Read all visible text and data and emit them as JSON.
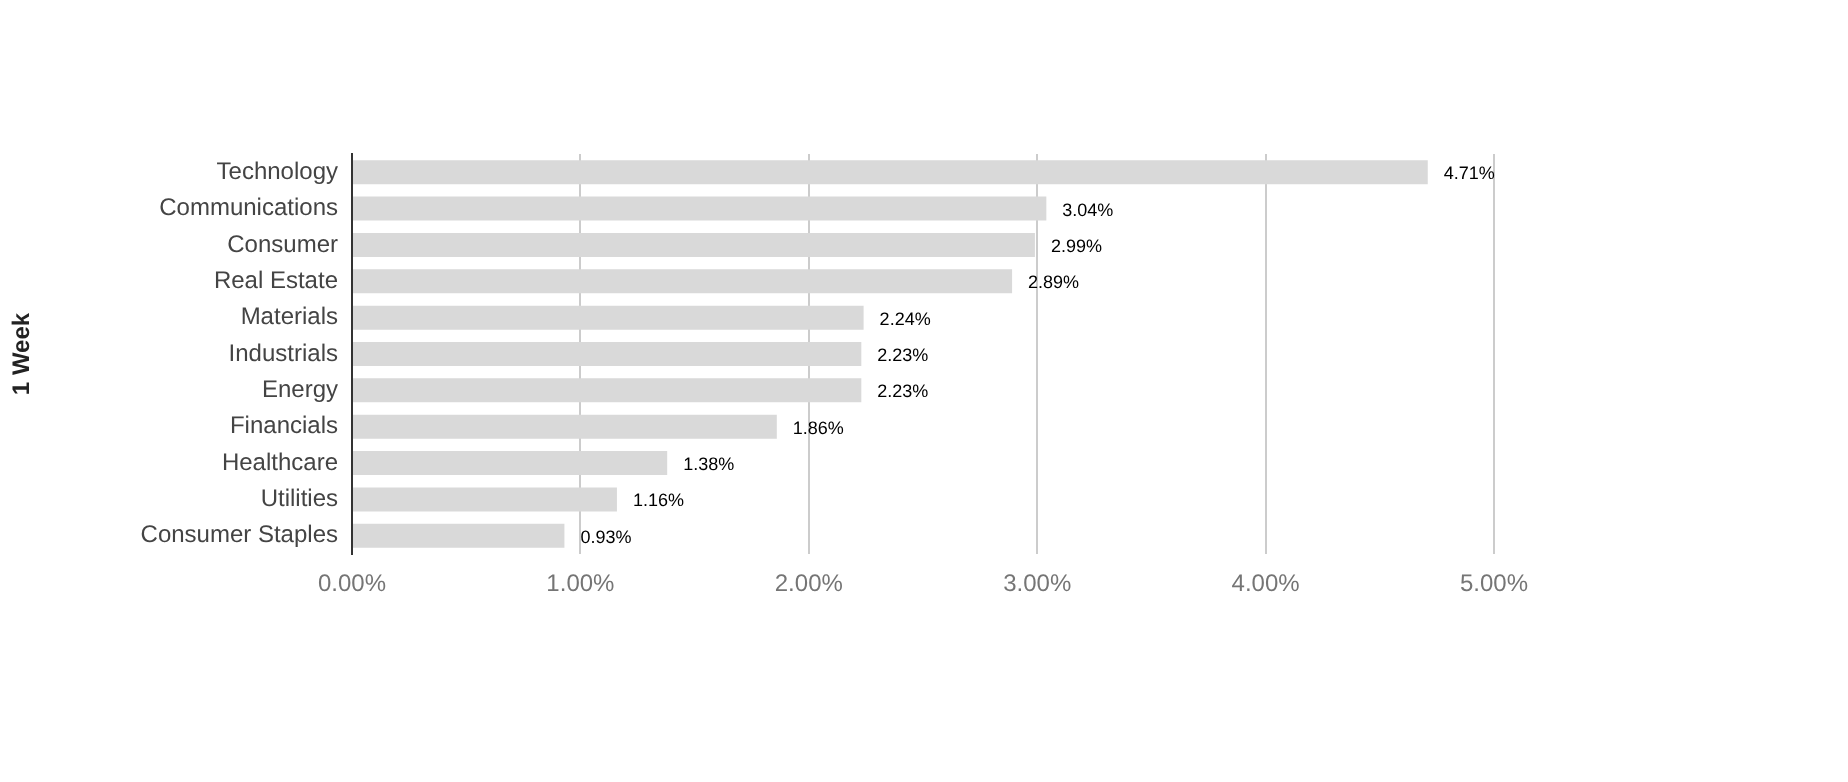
{
  "chart_data": {
    "type": "bar",
    "orientation": "horizontal",
    "ylabel": "1 Week",
    "categories": [
      "Technology",
      "Communications",
      "Consumer",
      "Real Estate",
      "Materials",
      "Industrials",
      "Energy",
      "Financials",
      "Healthcare",
      "Utilities",
      "Consumer Staples"
    ],
    "values": [
      4.71,
      3.04,
      2.99,
      2.89,
      2.24,
      2.23,
      2.23,
      1.86,
      1.38,
      1.16,
      0.93
    ],
    "value_labels": [
      "4.71%",
      "3.04%",
      "2.99%",
      "2.89%",
      "2.24%",
      "2.23%",
      "2.23%",
      "1.86%",
      "1.38%",
      "1.16%",
      "0.93%"
    ],
    "color": "#d9d9d9",
    "xlim": [
      0,
      5
    ],
    "xticks": [
      {
        "value": 0,
        "label": "0.00%"
      },
      {
        "value": 1,
        "label": "1.00%"
      },
      {
        "value": 2,
        "label": "2.00%"
      },
      {
        "value": 3,
        "label": "3.00%"
      },
      {
        "value": 4,
        "label": "4.00%"
      },
      {
        "value": 5,
        "label": "5.00%"
      }
    ],
    "grid": "x",
    "legend": false
  }
}
